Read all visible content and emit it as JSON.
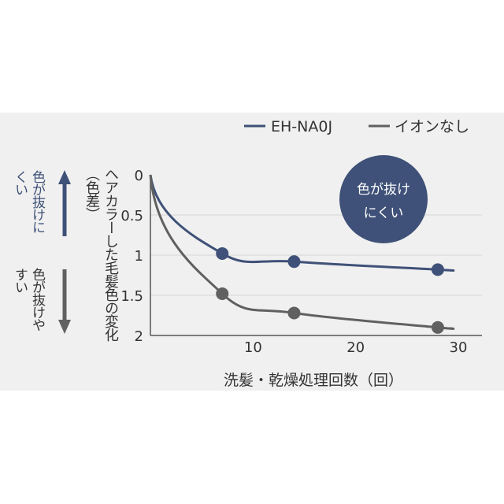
{
  "chart_data": {
    "type": "line",
    "title": "",
    "xlabel": "洗髪・乾燥処理回数（回）",
    "ylabel": "ヘアカラーした毛髪色の変化（色差）",
    "xlim": [
      0,
      30
    ],
    "ylim": [
      0,
      2
    ],
    "y_inverted": true,
    "x_ticks": [
      "10",
      "20",
      "30"
    ],
    "y_ticks": [
      "0",
      "0.5",
      "1",
      "1.5",
      "2"
    ],
    "grid": true,
    "legend_position": "top-right",
    "series": [
      {
        "name": "EH-NA0J",
        "color": "#3f5178",
        "points": [
          [
            7,
            0.98
          ],
          [
            14,
            1.08
          ],
          [
            28,
            1.18
          ]
        ]
      },
      {
        "name": "イオンなし",
        "color": "#606060",
        "points": [
          [
            7,
            1.48
          ],
          [
            14,
            1.72
          ],
          [
            28,
            1.9
          ]
        ]
      }
    ],
    "annotation": {
      "line1": "色が抜け",
      "line2": "にくい",
      "color": "#3f5178"
    }
  },
  "side_labels": {
    "upper": "色が抜けにくい",
    "lower": "色が抜けやすい",
    "upper_color": "#3f5178",
    "lower_color": "#606060"
  }
}
